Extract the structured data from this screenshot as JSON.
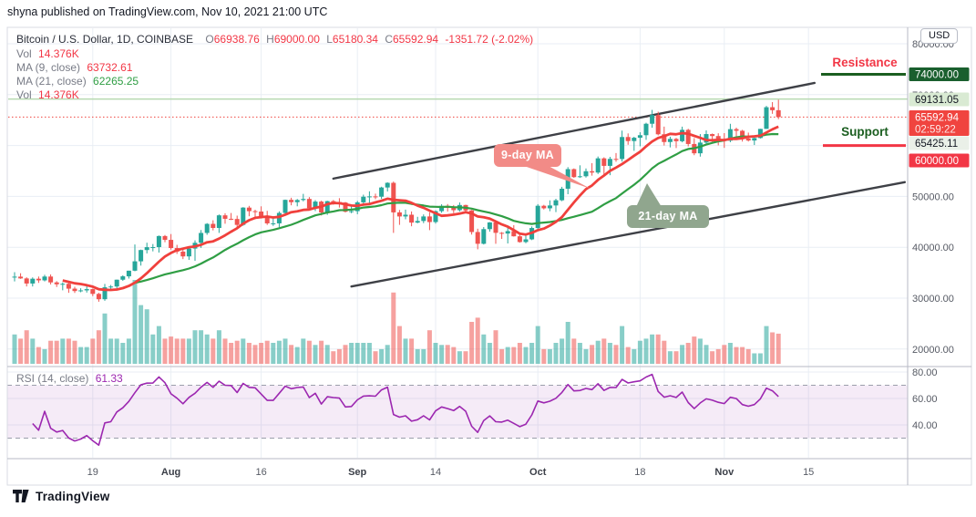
{
  "header": {
    "published_line": "shyna published on TradingView.com, Nov 10, 2021 21:00 UTC"
  },
  "legend": {
    "symbol_title": "Bitcoin / U.S. Dollar, 1D, COINBASE",
    "ohlc": {
      "o_label": "O",
      "o_value": "66938.76",
      "h_label": "H",
      "h_value": "69000.00",
      "l_label": "L",
      "l_value": "65180.34",
      "c_label": "C",
      "c_value": "65592.94"
    },
    "change": "-1351.72 (-2.02%)",
    "vol_label": "Vol",
    "vol_value": "14.376K",
    "ma9_label": "MA (9, close)",
    "ma9_value": "63732.61",
    "ma21_label": "MA (21, close)",
    "ma21_value": "62265.25",
    "vol2_label": "Vol",
    "vol2_value": "14.376K"
  },
  "rsi_legend": {
    "label": "RSI (14, close)",
    "value": "61.33"
  },
  "axis": {
    "usd_button": "USD",
    "price_ticks": [
      {
        "price": 80000,
        "label": "80000.00"
      },
      {
        "price": 70000,
        "label": "70000.00"
      },
      {
        "price": 50000,
        "label": "50000.00"
      },
      {
        "price": 40000,
        "label": "40000.00"
      },
      {
        "price": 30000,
        "label": "30000.00"
      },
      {
        "price": 20000,
        "label": "20000.00"
      }
    ],
    "badges": [
      {
        "id": "resistance-level",
        "text": "74000.00",
        "style": "darkgreen"
      },
      {
        "id": "level-69131",
        "text": "69131.05",
        "style": "palegreen"
      },
      {
        "id": "last-price",
        "text": "65592.94",
        "countdown": "02:59:22",
        "style": "red2"
      },
      {
        "id": "level-65425",
        "text": "65425.11",
        "style": "pale"
      },
      {
        "id": "support-level",
        "text": "60000.00",
        "style": "red"
      }
    ],
    "rsi_ticks": [
      {
        "value": 80,
        "label": "80.00"
      },
      {
        "value": 60,
        "label": "60.00"
      },
      {
        "value": 40,
        "label": "40.00"
      }
    ],
    "time_ticks": [
      {
        "day": 13,
        "label": "19",
        "bold": false
      },
      {
        "day": 26,
        "label": "Aug",
        "bold": true
      },
      {
        "day": 41,
        "label": "16",
        "bold": false
      },
      {
        "day": 57,
        "label": "Sep",
        "bold": true
      },
      {
        "day": 70,
        "label": "14",
        "bold": false
      },
      {
        "day": 87,
        "label": "Oct",
        "bold": true
      },
      {
        "day": 104,
        "label": "18",
        "bold": false
      },
      {
        "day": 118,
        "label": "Nov",
        "bold": true
      },
      {
        "day": 132,
        "label": "15",
        "bold": false
      }
    ]
  },
  "annotations": {
    "resistance": {
      "label": "Resistance",
      "price": 74000
    },
    "support": {
      "label": "Support",
      "price": 60000
    },
    "ma9_callout": {
      "label": "9-day MA"
    },
    "ma21_callout": {
      "label": "21-day MA"
    },
    "channel": {
      "upper": {
        "d1": 53,
        "p1": 53500,
        "d2": 133,
        "p2": 72300
      },
      "lower": {
        "d1": 56,
        "p1": 32300,
        "d2": 148,
        "p2": 52800
      }
    },
    "level_lines": [
      {
        "price": 69131.05,
        "style": "solid",
        "color": "#b7d9b0"
      },
      {
        "price": 65592.94,
        "style": "dotted",
        "color": "#f0443f"
      }
    ]
  },
  "branding": {
    "logo_text": "TradingView"
  },
  "colors": {
    "up": "#26a69a",
    "down": "#ef5350",
    "vol_up": "rgba(38,166,154,0.55)",
    "vol_down": "rgba(239,83,80,0.55)",
    "ma9": "#f0403c",
    "ma21": "#2f9e44",
    "rsi": "#9c27b0",
    "rsi_band": "rgba(155,60,180,0.10)",
    "grid": "#e9eef4",
    "border": "#d8dbe3",
    "separator": "#b7bac4",
    "axis_text": "#565a64",
    "channel": "#3e4046",
    "badge_darkgreen": "#1a5f2e",
    "badge_palegreen": "#d9ead3",
    "badge_red": "#f23645",
    "badge_pale": "#eaf0e8"
  },
  "chart_data": {
    "type": "candlestick",
    "title": "Bitcoin / U.S. Dollar",
    "exchange": "COINBASE",
    "interval": "1D",
    "start_date": "2021-07-06",
    "end_date": "2021-11-10",
    "price_axis_range": [
      17000,
      83000
    ],
    "rsi_axis_ticks": [
      80,
      60,
      40
    ],
    "indicators": [
      {
        "name": "MA",
        "period": 9,
        "source": "close",
        "last_value": 63732.61
      },
      {
        "name": "MA",
        "period": 21,
        "source": "close",
        "last_value": 62265.25
      },
      {
        "name": "RSI",
        "period": 14,
        "source": "close",
        "last_value": 61.33,
        "bands": [
          70,
          30
        ]
      },
      {
        "name": "Vol",
        "last_value": "14.376K"
      }
    ],
    "key_levels": {
      "resistance": 74000,
      "support": 60000,
      "marked_levels": [
        69131.05,
        65425.11
      ]
    },
    "last_candle": {
      "open": 66938.76,
      "high": 69000.0,
      "low": 65180.34,
      "close": 65592.94,
      "change": -1351.72,
      "change_pct": -2.02,
      "countdown": "02:59:22"
    },
    "volume_unit": "K",
    "candles_format": [
      "open",
      "high",
      "low",
      "close",
      "volume"
    ],
    "candles": [
      [
        34200,
        35100,
        33300,
        34230,
        14
      ],
      [
        34230,
        34900,
        33800,
        33880,
        12
      ],
      [
        33880,
        34100,
        32300,
        32880,
        16
      ],
      [
        32880,
        34080,
        32300,
        33820,
        12
      ],
      [
        33820,
        34250,
        33000,
        33500,
        8
      ],
      [
        33500,
        34600,
        33300,
        34250,
        7
      ],
      [
        34250,
        34660,
        32700,
        33100,
        11
      ],
      [
        33100,
        33340,
        32200,
        32730,
        11
      ],
      [
        32730,
        33090,
        31550,
        32820,
        12
      ],
      [
        32820,
        33190,
        31050,
        31870,
        12
      ],
      [
        31870,
        32250,
        31020,
        31400,
        11
      ],
      [
        31400,
        31950,
        31160,
        31530,
        8
      ],
      [
        31530,
        32440,
        31100,
        31780,
        8
      ],
      [
        31780,
        31890,
        30400,
        30840,
        12
      ],
      [
        30840,
        31060,
        29300,
        29790,
        16
      ],
      [
        29790,
        32800,
        29480,
        32140,
        24
      ],
      [
        32140,
        32590,
        31700,
        32290,
        12
      ],
      [
        32290,
        33650,
        31950,
        33630,
        12
      ],
      [
        33630,
        34500,
        33400,
        34290,
        10
      ],
      [
        34290,
        35400,
        33850,
        35400,
        12
      ],
      [
        35400,
        40550,
        35280,
        37240,
        40
      ],
      [
        37240,
        39540,
        36400,
        39460,
        28
      ],
      [
        39460,
        40900,
        38800,
        40020,
        26
      ],
      [
        40020,
        40640,
        39200,
        40030,
        14
      ],
      [
        40030,
        42320,
        38960,
        42210,
        18
      ],
      [
        42210,
        42420,
        41000,
        41460,
        12
      ],
      [
        41460,
        42600,
        39540,
        39850,
        13
      ],
      [
        39850,
        40480,
        38700,
        39150,
        12
      ],
      [
        39150,
        39780,
        37680,
        38210,
        12
      ],
      [
        38210,
        39970,
        37520,
        39750,
        12
      ],
      [
        39750,
        41350,
        37350,
        40880,
        16
      ],
      [
        40880,
        43390,
        39880,
        42820,
        16
      ],
      [
        42820,
        44750,
        42450,
        44600,
        14
      ],
      [
        44600,
        45310,
        43320,
        43800,
        12
      ],
      [
        43800,
        46450,
        42830,
        46280,
        16
      ],
      [
        46280,
        46690,
        44620,
        45600,
        12
      ],
      [
        45600,
        46740,
        45350,
        45560,
        10
      ],
      [
        45560,
        46220,
        43770,
        44400,
        11
      ],
      [
        44400,
        47890,
        44230,
        47800,
        12
      ],
      [
        47800,
        48140,
        46100,
        47100,
        10
      ],
      [
        47100,
        47380,
        45500,
        47020,
        9
      ],
      [
        47020,
        48050,
        45660,
        45900,
        10
      ],
      [
        45900,
        47160,
        44400,
        44700,
        11
      ],
      [
        44700,
        46000,
        44200,
        44700,
        10
      ],
      [
        44700,
        47060,
        43940,
        46750,
        11
      ],
      [
        46750,
        49380,
        46620,
        49320,
        12
      ],
      [
        49320,
        49740,
        48250,
        48870,
        9
      ],
      [
        48870,
        49490,
        48050,
        49290,
        8
      ],
      [
        49290,
        50500,
        49030,
        49500,
        12
      ],
      [
        49500,
        49860,
        47600,
        47680,
        11
      ],
      [
        47680,
        49270,
        47120,
        48980,
        9
      ],
      [
        48980,
        49150,
        46250,
        46840,
        11
      ],
      [
        46840,
        49140,
        46370,
        49070,
        9
      ],
      [
        49070,
        49290,
        48370,
        48900,
        6
      ],
      [
        48900,
        49650,
        47800,
        48800,
        7
      ],
      [
        48800,
        48900,
        46850,
        46990,
        9
      ],
      [
        46990,
        48200,
        46700,
        47100,
        10
      ],
      [
        47100,
        49120,
        46500,
        48830,
        10
      ],
      [
        48830,
        50340,
        48600,
        49940,
        10
      ],
      [
        49940,
        51000,
        48320,
        50000,
        10
      ],
      [
        50000,
        50550,
        49450,
        49940,
        6
      ],
      [
        49940,
        51900,
        49500,
        51750,
        7
      ],
      [
        51750,
        52780,
        50970,
        52670,
        9
      ],
      [
        52670,
        52920,
        42830,
        46860,
        34
      ],
      [
        46860,
        47340,
        44410,
        46060,
        18
      ],
      [
        46060,
        47400,
        45510,
        46400,
        12
      ],
      [
        46400,
        47040,
        44130,
        44850,
        12
      ],
      [
        44850,
        45990,
        44720,
        45170,
        7
      ],
      [
        45170,
        46460,
        44740,
        46060,
        7
      ],
      [
        46060,
        46880,
        43370,
        44960,
        16
      ],
      [
        44960,
        47250,
        44660,
        47100,
        10
      ],
      [
        47100,
        48450,
        46780,
        48140,
        9
      ],
      [
        48140,
        48500,
        47020,
        47740,
        9
      ],
      [
        47740,
        48300,
        46700,
        47290,
        8
      ],
      [
        47290,
        48820,
        47030,
        48310,
        6
      ],
      [
        48310,
        48380,
        46820,
        47250,
        6
      ],
      [
        47250,
        47340,
        42500,
        43000,
        20
      ],
      [
        43000,
        43650,
        39600,
        40690,
        22
      ],
      [
        40690,
        43980,
        40550,
        43570,
        14
      ],
      [
        43570,
        44950,
        43070,
        44890,
        10
      ],
      [
        44890,
        45100,
        40680,
        42840,
        16
      ],
      [
        42840,
        42990,
        41650,
        42700,
        7
      ],
      [
        42700,
        43900,
        40750,
        43180,
        8
      ],
      [
        43180,
        44350,
        42100,
        42160,
        8
      ],
      [
        42160,
        42780,
        40900,
        41030,
        10
      ],
      [
        41030,
        42590,
        40790,
        41560,
        8
      ],
      [
        41560,
        44100,
        41410,
        43790,
        10
      ],
      [
        43790,
        48480,
        43290,
        48160,
        18
      ],
      [
        48160,
        48340,
        47430,
        47660,
        7
      ],
      [
        47660,
        49230,
        47090,
        48220,
        7
      ],
      [
        48220,
        49530,
        46920,
        49240,
        10
      ],
      [
        49240,
        51880,
        49060,
        51510,
        12
      ],
      [
        51510,
        55750,
        50430,
        55360,
        20
      ],
      [
        55360,
        55500,
        53650,
        53790,
        12
      ],
      [
        53790,
        56110,
        53630,
        53960,
        10
      ],
      [
        53960,
        55490,
        53690,
        54950,
        7
      ],
      [
        54950,
        56540,
        54080,
        54690,
        9
      ],
      [
        54690,
        57840,
        54410,
        57480,
        11
      ],
      [
        57480,
        57680,
        53880,
        56000,
        12
      ],
      [
        56000,
        57780,
        54170,
        57370,
        10
      ],
      [
        57370,
        58520,
        56820,
        57350,
        9
      ],
      [
        57350,
        62930,
        56850,
        61670,
        18
      ],
      [
        61670,
        62380,
        60150,
        60880,
        8
      ],
      [
        60880,
        61720,
        58960,
        61530,
        7
      ],
      [
        61530,
        62610,
        59850,
        62030,
        11
      ],
      [
        62030,
        64480,
        61120,
        64280,
        12
      ],
      [
        64280,
        67000,
        63500,
        65990,
        14
      ],
      [
        65990,
        66650,
        62000,
        62210,
        14
      ],
      [
        62210,
        63720,
        60000,
        60690,
        11
      ],
      [
        60690,
        61730,
        59630,
        61300,
        6
      ],
      [
        61300,
        61500,
        59510,
        60850,
        6
      ],
      [
        60850,
        63710,
        60630,
        63080,
        9
      ],
      [
        63080,
        63290,
        59820,
        60300,
        10
      ],
      [
        60300,
        61450,
        58100,
        58470,
        13
      ],
      [
        58470,
        62250,
        57820,
        60580,
        12
      ],
      [
        60580,
        62980,
        60190,
        62250,
        9
      ],
      [
        62250,
        62360,
        60750,
        61860,
        6
      ],
      [
        61860,
        62410,
        60030,
        61300,
        7
      ],
      [
        61300,
        62440,
        59540,
        60950,
        9
      ],
      [
        60950,
        64270,
        60650,
        63220,
        10
      ],
      [
        63220,
        63520,
        61580,
        62900,
        8
      ],
      [
        62900,
        63080,
        60780,
        61400,
        8
      ],
      [
        61400,
        62540,
        60790,
        60990,
        7
      ],
      [
        60990,
        61550,
        60100,
        61470,
        5
      ],
      [
        61470,
        63280,
        61380,
        63270,
        5
      ],
      [
        63270,
        67790,
        63270,
        67530,
        18
      ],
      [
        67530,
        68530,
        66230,
        66940,
        15
      ],
      [
        66938.76,
        69000,
        65180.34,
        65592.94,
        14.376
      ]
    ]
  }
}
